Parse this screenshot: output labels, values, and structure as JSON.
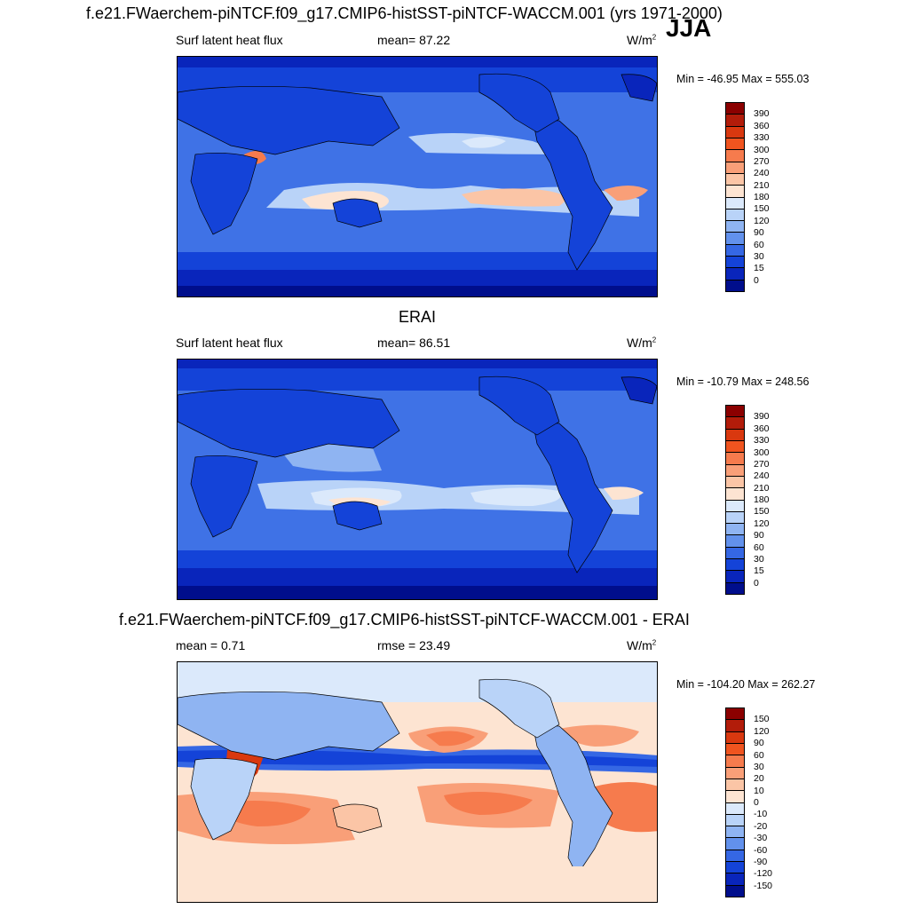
{
  "figure": {
    "main_title": "f.e21.FWaerchem-piNTCF.f09_g17.CMIP6-histSST-piNTCF-WACCM.001 (yrs 1971-2000)",
    "season": "JJA"
  },
  "panels": [
    {
      "title": "",
      "variable": "Surf latent heat flux",
      "stat": "mean=  87.22",
      "units": "W/m",
      "units_sup": "2",
      "minmax": "Min = -46.95 Max = 555.03",
      "levels": [
        "390",
        "360",
        "330",
        "300",
        "270",
        "240",
        "210",
        "180",
        "150",
        "120",
        "90",
        "60",
        "30",
        "15",
        "0"
      ],
      "colors": [
        "#8b0000",
        "#b21c0a",
        "#d9380f",
        "#f0541f",
        "#f67b4d",
        "#f99f78",
        "#fbc5a6",
        "#fde4d2",
        "#dbe9fb",
        "#b9d3f8",
        "#8fb4f2",
        "#6291ec",
        "#3567e4",
        "#1443d8",
        "#0925bb",
        "#000e8c"
      ]
    },
    {
      "title": "ERAI",
      "variable": "Surf latent heat flux",
      "stat": "mean=  86.51",
      "units": "W/m",
      "units_sup": "2",
      "minmax": "Min = -10.79 Max = 248.56",
      "levels": [
        "390",
        "360",
        "330",
        "300",
        "270",
        "240",
        "210",
        "180",
        "150",
        "120",
        "90",
        "60",
        "30",
        "15",
        "0"
      ],
      "colors": [
        "#8b0000",
        "#b21c0a",
        "#d9380f",
        "#f0541f",
        "#f67b4d",
        "#f99f78",
        "#fbc5a6",
        "#fde4d2",
        "#dbe9fb",
        "#b9d3f8",
        "#8fb4f2",
        "#6291ec",
        "#3567e4",
        "#1443d8",
        "#0925bb",
        "#000e8c"
      ]
    },
    {
      "title": "f.e21.FWaerchem-piNTCF.f09_g17.CMIP6-histSST-piNTCF-WACCM.001 - ERAI",
      "variable": "mean =   0.71",
      "stat": "rmse =  23.49",
      "units": "W/m",
      "units_sup": "2",
      "minmax": "Min = -104.20 Max = 262.27",
      "levels": [
        "150",
        "120",
        "90",
        "60",
        "30",
        "20",
        "10",
        "0",
        "-10",
        "-20",
        "-30",
        "-60",
        "-90",
        "-120",
        "-150"
      ],
      "colors": [
        "#8b0000",
        "#b21c0a",
        "#d9380f",
        "#f0541f",
        "#f67b4d",
        "#f99f78",
        "#fbc5a6",
        "#fde4d2",
        "#dbe9fb",
        "#b9d3f8",
        "#8fb4f2",
        "#6291ec",
        "#3567e4",
        "#1443d8",
        "#0925bb",
        "#000e8c"
      ]
    }
  ]
}
